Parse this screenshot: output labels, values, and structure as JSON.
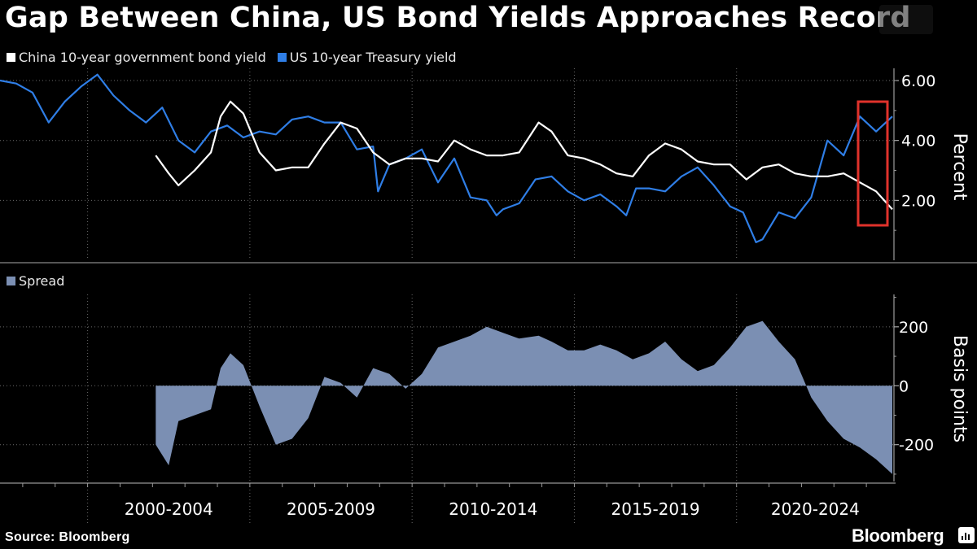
{
  "title": "Gap Between China, US Bond Yields Approaches Record",
  "source": "Source: Bloomberg",
  "brand": "Bloomberg",
  "colors": {
    "background": "#000000",
    "china": "#ffffff",
    "us": "#2f7ee6",
    "spread": "#7b8fb3",
    "highlight": "#e0322b",
    "grid": "#6a6a6a"
  },
  "chart_data": [
    {
      "type": "line",
      "title": "Gap Between China, US Bond Yields Approaches Record",
      "ylabel": "Percent",
      "ylim": [
        0,
        6.3
      ],
      "yticks": [
        "6.00",
        "4.00",
        "2.00"
      ],
      "ytick_values": [
        6,
        4,
        2
      ],
      "legend": [
        "China 10-year government bond yield",
        "US 10-year Treasury yield"
      ],
      "legend_position": "top-left",
      "xlim": [
        1997.3,
        2024.85
      ],
      "series": [
        {
          "name": "US 10-year Treasury yield",
          "color": "#2f7ee6",
          "x": [
            1997.3,
            1997.8,
            1998.3,
            1998.8,
            1999.3,
            1999.8,
            2000.3,
            2000.8,
            2001.3,
            2001.8,
            2002.3,
            2002.8,
            2003.3,
            2003.8,
            2004.3,
            2004.8,
            2005.3,
            2005.8,
            2006.3,
            2006.8,
            2007.3,
            2007.8,
            2008.3,
            2008.8,
            2008.95,
            2009.3,
            2009.8,
            2010.3,
            2010.8,
            2011.3,
            2011.8,
            2012.3,
            2012.6,
            2012.8,
            2013.3,
            2013.8,
            2014.3,
            2014.8,
            2015.3,
            2015.8,
            2016.3,
            2016.6,
            2016.9,
            2017.3,
            2017.8,
            2018.3,
            2018.8,
            2019.3,
            2019.8,
            2020.2,
            2020.6,
            2020.8,
            2021.3,
            2021.8,
            2022.3,
            2022.8,
            2023.3,
            2023.8,
            2024.3,
            2024.8
          ],
          "y": [
            6.0,
            5.9,
            5.6,
            4.6,
            5.3,
            5.8,
            6.2,
            5.5,
            5.0,
            4.6,
            5.1,
            4.0,
            3.6,
            4.3,
            4.5,
            4.1,
            4.3,
            4.2,
            4.7,
            4.8,
            4.6,
            4.6,
            3.7,
            3.8,
            2.3,
            3.2,
            3.4,
            3.7,
            2.6,
            3.4,
            2.1,
            2.0,
            1.5,
            1.7,
            1.9,
            2.7,
            2.8,
            2.3,
            2.0,
            2.2,
            1.8,
            1.5,
            2.4,
            2.4,
            2.3,
            2.8,
            3.1,
            2.5,
            1.8,
            1.6,
            0.6,
            0.7,
            1.6,
            1.4,
            2.1,
            4.0,
            3.5,
            4.8,
            4.3,
            4.8
          ]
        },
        {
          "name": "China 10-year government bond yield",
          "color": "#ffffff",
          "x": [
            2002.1,
            2002.5,
            2002.8,
            2003.3,
            2003.8,
            2004.1,
            2004.4,
            2004.8,
            2005.3,
            2005.8,
            2006.3,
            2006.8,
            2007.3,
            2007.8,
            2008.3,
            2008.8,
            2009.3,
            2009.8,
            2010.3,
            2010.8,
            2011.3,
            2011.8,
            2012.3,
            2012.8,
            2013.3,
            2013.9,
            2014.3,
            2014.8,
            2015.3,
            2015.8,
            2016.3,
            2016.8,
            2017.3,
            2017.8,
            2018.3,
            2018.8,
            2019.3,
            2019.8,
            2020.3,
            2020.8,
            2021.3,
            2021.8,
            2022.3,
            2022.8,
            2023.3,
            2023.8,
            2024.3,
            2024.8
          ],
          "y": [
            3.5,
            2.9,
            2.5,
            3.0,
            3.6,
            4.8,
            5.3,
            4.9,
            3.6,
            3.0,
            3.1,
            3.1,
            3.9,
            4.6,
            4.4,
            3.6,
            3.2,
            3.4,
            3.4,
            3.3,
            4.0,
            3.7,
            3.5,
            3.5,
            3.6,
            4.6,
            4.3,
            3.5,
            3.4,
            3.2,
            2.9,
            2.8,
            3.5,
            3.9,
            3.7,
            3.3,
            3.2,
            3.2,
            2.7,
            3.1,
            3.2,
            2.9,
            2.8,
            2.8,
            2.9,
            2.6,
            2.3,
            1.7
          ]
        }
      ]
    },
    {
      "type": "area",
      "ylabel": "Basis points",
      "ylim": [
        -325,
        310
      ],
      "yticks": [
        "200",
        "0",
        "-200"
      ],
      "ytick_values": [
        200,
        0,
        -200
      ],
      "legend": [
        "Spread"
      ],
      "legend_position": "top-left",
      "xlim": [
        1997.3,
        2024.85
      ],
      "categories": [
        "2000-2004",
        "2005-2009",
        "2010-2014",
        "2015-2019",
        "2020-2024"
      ],
      "series": [
        {
          "name": "Spread",
          "color": "#7b8fb3",
          "x": [
            2002.1,
            2002.5,
            2002.8,
            2003.3,
            2003.8,
            2004.1,
            2004.4,
            2004.8,
            2005.3,
            2005.8,
            2006.3,
            2006.8,
            2007.3,
            2007.8,
            2008.3,
            2008.8,
            2009.3,
            2009.8,
            2010.3,
            2010.8,
            2011.3,
            2011.8,
            2012.3,
            2012.8,
            2013.3,
            2013.9,
            2014.3,
            2014.8,
            2015.3,
            2015.8,
            2016.3,
            2016.8,
            2017.3,
            2017.8,
            2018.3,
            2018.8,
            2019.3,
            2019.8,
            2020.3,
            2020.8,
            2021.3,
            2021.8,
            2022.3,
            2022.8,
            2023.3,
            2023.8,
            2024.3,
            2024.8
          ],
          "y": [
            -200,
            -270,
            -120,
            -100,
            -80,
            60,
            110,
            70,
            -70,
            -200,
            -180,
            -110,
            30,
            10,
            -40,
            60,
            40,
            -10,
            40,
            130,
            150,
            170,
            200,
            180,
            160,
            170,
            150,
            120,
            120,
            140,
            120,
            90,
            110,
            150,
            90,
            50,
            70,
            130,
            200,
            220,
            150,
            90,
            -40,
            -120,
            -180,
            -210,
            -250,
            -300
          ]
        }
      ]
    }
  ]
}
